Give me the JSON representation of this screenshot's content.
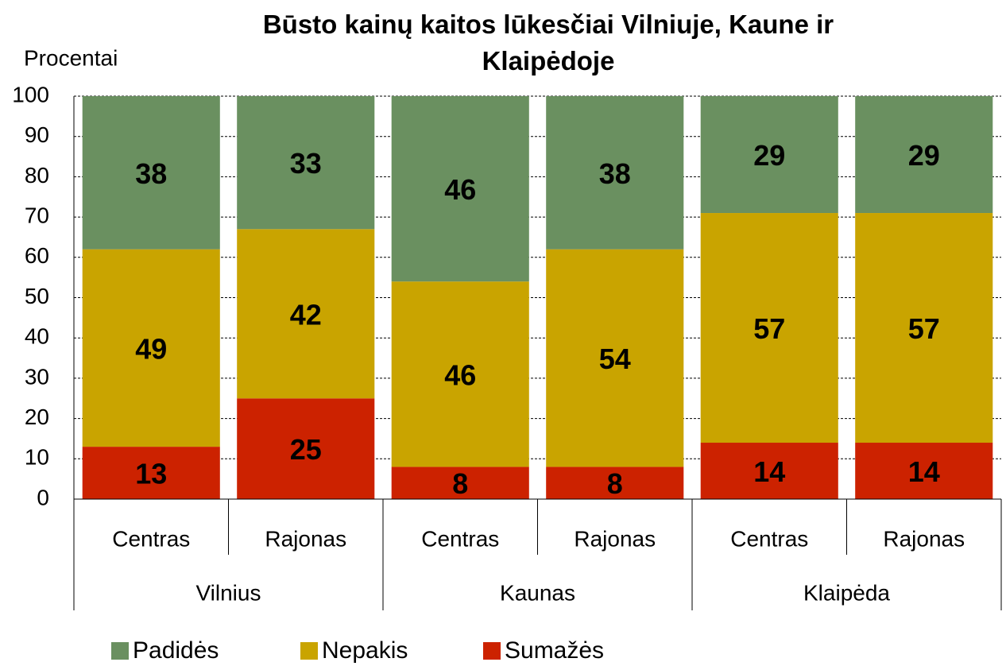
{
  "chart_data": {
    "type": "stacked_bar",
    "title": "Būsto kainų kaitos lūkesčiai Vilniuje, Kaune ir Klaipėdoje",
    "y_label": "Procentai",
    "categories": [
      "Centras",
      "Rajonas",
      "Centras",
      "Rajonas",
      "Centras",
      "Rajonas"
    ],
    "groups": [
      "Vilnius",
      "Kaunas",
      "Klaipėda"
    ],
    "series": [
      {
        "name": "Padidės",
        "color": "#6a9060",
        "values": [
          38,
          33,
          46,
          38,
          29,
          29
        ]
      },
      {
        "name": "Nepakis",
        "color": "#c9a400",
        "values": [
          49,
          42,
          46,
          54,
          57,
          57
        ]
      },
      {
        "name": "Sumažės",
        "color": "#cc2200",
        "values": [
          13,
          25,
          8,
          8,
          14,
          14
        ]
      }
    ],
    "ylim": [
      0,
      100
    ],
    "yticks": [
      0,
      10,
      20,
      30,
      40,
      50,
      60,
      70,
      80,
      90,
      100
    ],
    "grid": true
  }
}
